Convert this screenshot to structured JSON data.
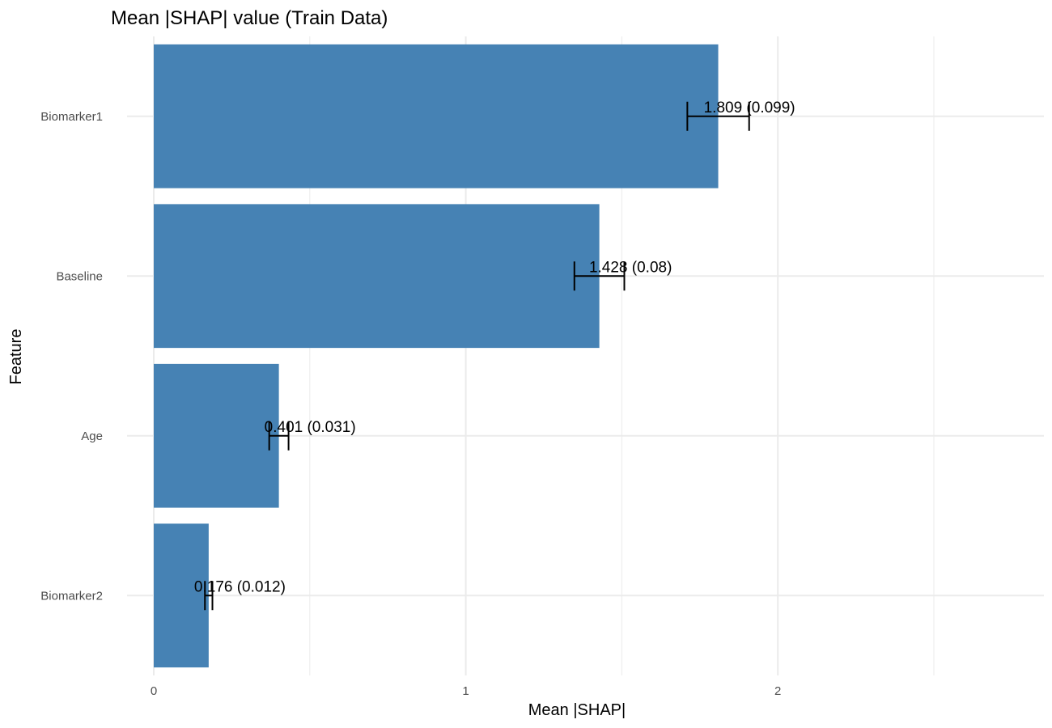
{
  "chart_data": {
    "type": "bar",
    "orientation": "horizontal",
    "title": "Mean |SHAP| value (Train Data)",
    "xlabel": "Mean |SHAP|",
    "ylabel": "Feature",
    "categories": [
      "Biomarker1",
      "Baseline",
      "Age",
      "Biomarker2"
    ],
    "values": [
      1.809,
      1.428,
      0.401,
      0.176
    ],
    "errors": [
      0.099,
      0.08,
      0.031,
      0.012
    ],
    "labels": [
      "1.809 (0.099)",
      "1.428 (0.08)",
      "0.401 (0.031)",
      "0.176 (0.012)"
    ],
    "xticks": [
      0,
      1,
      2
    ],
    "xtick_labels": [
      "0",
      "1",
      "2"
    ],
    "xlim": [
      0,
      2.85
    ],
    "grid": true,
    "bar_color": "#4682B4"
  }
}
